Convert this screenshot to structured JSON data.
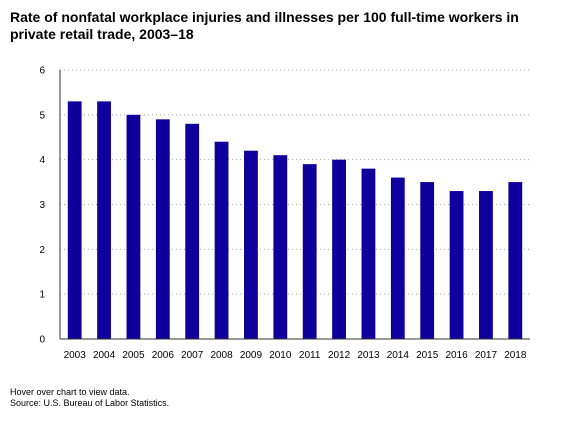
{
  "chart_data": {
    "type": "bar",
    "title": "Rate of nonfatal workplace injuries and illnesses per 100 full-time workers in private retail trade, 2003–18",
    "xlabel": "",
    "ylabel": "",
    "categories": [
      "2003",
      "2004",
      "2005",
      "2006",
      "2007",
      "2008",
      "2009",
      "2010",
      "2011",
      "2012",
      "2013",
      "2014",
      "2015",
      "2016",
      "2017",
      "2018"
    ],
    "values": [
      5.3,
      5.3,
      5.0,
      4.9,
      4.8,
      4.4,
      4.2,
      4.1,
      3.9,
      4.0,
      3.8,
      3.6,
      3.5,
      3.3,
      3.3,
      3.5
    ],
    "ylim": [
      0,
      6
    ],
    "yticks": [
      "0",
      "1",
      "2",
      "3",
      "4",
      "5",
      "6"
    ],
    "grid": true,
    "legend": "none",
    "bar_color": "#0f009e"
  },
  "footer": {
    "hover_note": "Hover over chart to view data.",
    "source": "Source: U.S. Bureau of Labor Statistics."
  }
}
